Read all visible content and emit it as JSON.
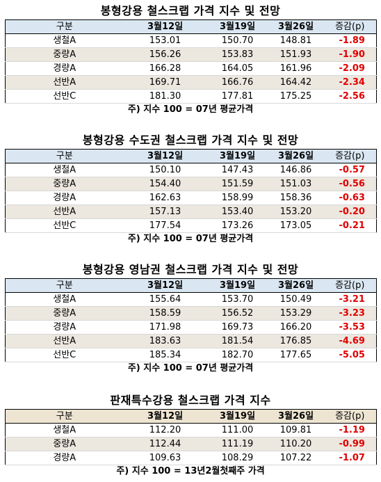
{
  "sections": [
    {
      "title": "봉형강용 철스크랩 가격 지수 및 전망",
      "headers": [
        "구분",
        "3월12일",
        "3월19일",
        "3월26일",
        "증감(p)"
      ],
      "rows": [
        [
          "생철A",
          "153.01",
          "150.70",
          "148.81",
          "-1.89"
        ],
        [
          "중량A",
          "156.26",
          "153.83",
          "151.93",
          "-1.90"
        ],
        [
          "경량A",
          "166.28",
          "164.05",
          "161.96",
          "-2.09"
        ],
        [
          "선반A",
          "169.71",
          "166.76",
          "164.42",
          "-2.34"
        ],
        [
          "선반C",
          "181.30",
          "177.81",
          "175.25",
          "-2.56"
        ]
      ],
      "note": "주) 지수 100 = 07년 평균가격"
    },
    {
      "title": "봉형강용 수도권 철스크랩 가격 지수 및 전망",
      "headers": [
        "구분",
        "3월12일",
        "3월19일",
        "3월26일",
        "증감(p)"
      ],
      "rows": [
        [
          "생철A",
          "150.10",
          "147.43",
          "146.86",
          "-0.57"
        ],
        [
          "중량A",
          "154.40",
          "151.59",
          "151.03",
          "-0.56"
        ],
        [
          "경량A",
          "162.63",
          "158.99",
          "158.36",
          "-0.63"
        ],
        [
          "선반A",
          "157.13",
          "153.40",
          "153.20",
          "-0.20"
        ],
        [
          "선반C",
          "177.54",
          "173.26",
          "173.05",
          "-0.21"
        ]
      ],
      "note": "주) 지수 100 = 07년 평균가격"
    },
    {
      "title": "봉형강용 영남권 철스크랩 가격 지수 및 전망",
      "headers": [
        "구분",
        "3월12일",
        "3월19일",
        "3월26일",
        "증감(p)"
      ],
      "rows": [
        [
          "생철A",
          "155.64",
          "153.70",
          "150.49",
          "-3.21"
        ],
        [
          "중량A",
          "158.59",
          "156.52",
          "153.29",
          "-3.23"
        ],
        [
          "경량A",
          "171.98",
          "169.73",
          "166.20",
          "-3.53"
        ],
        [
          "선반A",
          "183.63",
          "181.54",
          "176.85",
          "-4.69"
        ],
        [
          "선반C",
          "185.34",
          "182.70",
          "177.65",
          "-5.05"
        ]
      ],
      "note": "주) 지수 100 = 07년 평균가격"
    },
    {
      "title": "판재특수강용 철스크랩 가격 지수",
      "headers": [
        "구분",
        "3월12일",
        "3월19일",
        "3월26일",
        "증감(p)"
      ],
      "rows": [
        [
          "생철A",
          "112.20",
          "111.00",
          "109.81",
          "-1.19"
        ],
        [
          "중량A",
          "112.44",
          "111.19",
          "110.20",
          "-0.99"
        ],
        [
          "경량A",
          "109.63",
          "108.29",
          "107.22",
          "-1.07"
        ]
      ],
      "note": "주) 지수 100 = 13년2월첫째주 가격"
    }
  ]
}
